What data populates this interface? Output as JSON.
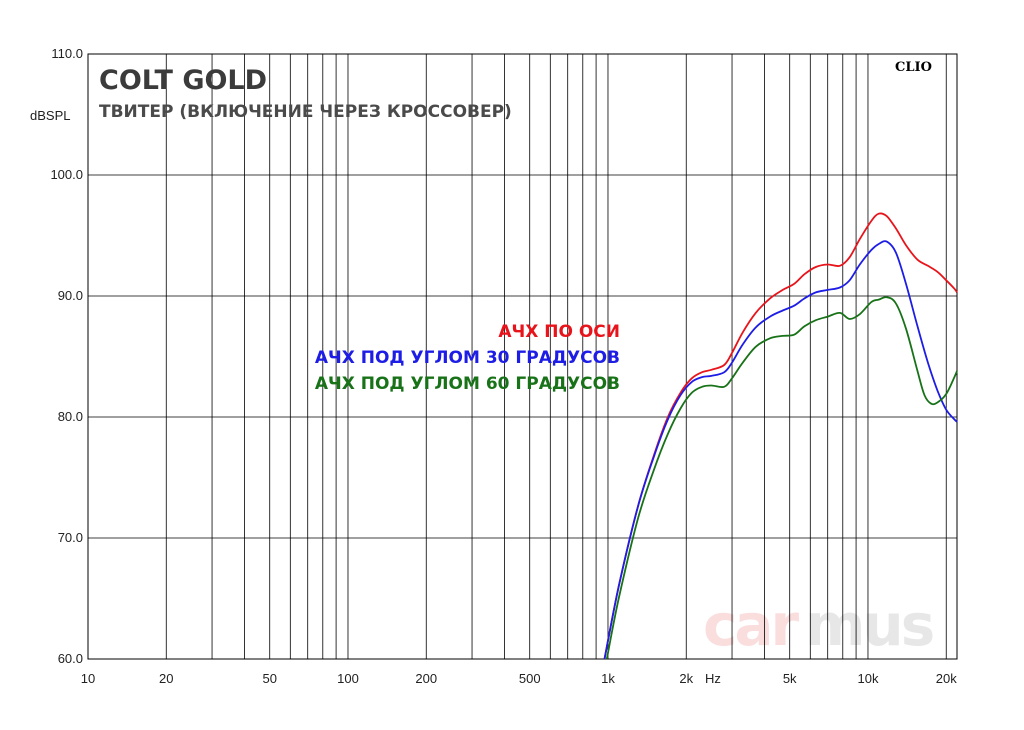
{
  "chart_data": {
    "type": "line",
    "title": "COLT GOLD",
    "subtitle": "ТВИТЕР (ВКЛЮЧЕНИЕ ЧЕРЕЗ КРОССОВЕР)",
    "brand": "CLIO",
    "watermark": {
      "left": "car",
      "right": "mus"
    },
    "ylabel": "dBSPL",
    "xunit": "Hz",
    "xscale": "log",
    "xlim": [
      10,
      22000
    ],
    "ylim": [
      60,
      110
    ],
    "grid": true,
    "legend_position": "center",
    "x_ticks": [
      {
        "value": 10,
        "label": "10"
      },
      {
        "value": 20,
        "label": "20"
      },
      {
        "value": 50,
        "label": "50"
      },
      {
        "value": 100,
        "label": "100"
      },
      {
        "value": 200,
        "label": "200"
      },
      {
        "value": 500,
        "label": "500"
      },
      {
        "value": 1000,
        "label": "1k"
      },
      {
        "value": 2000,
        "label": "2k"
      },
      {
        "value": 5000,
        "label": "5k"
      },
      {
        "value": 10000,
        "label": "10k"
      },
      {
        "value": 20000,
        "label": "20k"
      }
    ],
    "y_ticks": [
      {
        "value": 60,
        "label": "60.0"
      },
      {
        "value": 70,
        "label": "70.0"
      },
      {
        "value": 80,
        "label": "80.0"
      },
      {
        "value": 90,
        "label": "90.0"
      },
      {
        "value": 100,
        "label": "100.0"
      },
      {
        "value": 110,
        "label": "110.0"
      }
    ],
    "series": [
      {
        "name": "АЧХ ПО ОСИ",
        "color": "#e8141b",
        "points": [
          [
            970,
            60
          ],
          [
            1100,
            66
          ],
          [
            1300,
            72.5
          ],
          [
            1500,
            76.8
          ],
          [
            1700,
            80
          ],
          [
            1900,
            82
          ],
          [
            2100,
            83.2
          ],
          [
            2300,
            83.7
          ],
          [
            2500,
            83.9
          ],
          [
            2800,
            84.3
          ],
          [
            3000,
            85.3
          ],
          [
            3300,
            87
          ],
          [
            3700,
            88.6
          ],
          [
            4200,
            89.8
          ],
          [
            4700,
            90.5
          ],
          [
            5200,
            91
          ],
          [
            5700,
            91.8
          ],
          [
            6300,
            92.4
          ],
          [
            7000,
            92.6
          ],
          [
            7800,
            92.5
          ],
          [
            8500,
            93.2
          ],
          [
            9300,
            94.7
          ],
          [
            10300,
            96.2
          ],
          [
            11000,
            96.8
          ],
          [
            11800,
            96.6
          ],
          [
            12800,
            95.6
          ],
          [
            14000,
            94.2
          ],
          [
            15500,
            93
          ],
          [
            17000,
            92.5
          ],
          [
            18500,
            92
          ],
          [
            20000,
            91.3
          ],
          [
            21500,
            90.6
          ],
          [
            22000,
            90.3
          ]
        ]
      },
      {
        "name": "АЧХ ПОД УГЛОМ 30 ГРАДУСОВ",
        "color": "#1d1de6",
        "points": [
          [
            970,
            60
          ],
          [
            1100,
            66
          ],
          [
            1300,
            72.5
          ],
          [
            1500,
            76.7
          ],
          [
            1700,
            79.8
          ],
          [
            1900,
            81.8
          ],
          [
            2100,
            82.9
          ],
          [
            2300,
            83.3
          ],
          [
            2500,
            83.4
          ],
          [
            2800,
            83.7
          ],
          [
            3000,
            84.5
          ],
          [
            3300,
            86
          ],
          [
            3700,
            87.4
          ],
          [
            4200,
            88.3
          ],
          [
            4700,
            88.8
          ],
          [
            5200,
            89.2
          ],
          [
            5700,
            89.8
          ],
          [
            6300,
            90.3
          ],
          [
            7000,
            90.5
          ],
          [
            7800,
            90.7
          ],
          [
            8500,
            91.3
          ],
          [
            9300,
            92.6
          ],
          [
            10300,
            93.8
          ],
          [
            11000,
            94.3
          ],
          [
            11800,
            94.5
          ],
          [
            12800,
            93.6
          ],
          [
            14000,
            91
          ],
          [
            15500,
            87.5
          ],
          [
            17000,
            84.5
          ],
          [
            18500,
            82.2
          ],
          [
            20000,
            80.6
          ],
          [
            21500,
            79.8
          ],
          [
            22000,
            79.6
          ]
        ]
      },
      {
        "name": "АЧХ ПОД УГЛОМ 60 ГРАДУСОВ",
        "color": "#187218",
        "points": [
          [
            990,
            60
          ],
          [
            1100,
            65
          ],
          [
            1300,
            71.5
          ],
          [
            1500,
            75.6
          ],
          [
            1700,
            78.6
          ],
          [
            1900,
            80.7
          ],
          [
            2100,
            82
          ],
          [
            2300,
            82.5
          ],
          [
            2500,
            82.6
          ],
          [
            2800,
            82.5
          ],
          [
            3000,
            83.2
          ],
          [
            3300,
            84.5
          ],
          [
            3700,
            85.8
          ],
          [
            4200,
            86.5
          ],
          [
            4700,
            86.7
          ],
          [
            5200,
            86.8
          ],
          [
            5700,
            87.5
          ],
          [
            6300,
            88
          ],
          [
            7000,
            88.3
          ],
          [
            7800,
            88.6
          ],
          [
            8500,
            88.1
          ],
          [
            9300,
            88.5
          ],
          [
            10300,
            89.5
          ],
          [
            11000,
            89.7
          ],
          [
            11800,
            89.9
          ],
          [
            12800,
            89.4
          ],
          [
            14000,
            87.3
          ],
          [
            15500,
            83.8
          ],
          [
            16500,
            81.8
          ],
          [
            17500,
            81.1
          ],
          [
            18500,
            81.2
          ],
          [
            20000,
            81.9
          ],
          [
            21500,
            83.3
          ],
          [
            22000,
            83.8
          ]
        ]
      }
    ]
  }
}
